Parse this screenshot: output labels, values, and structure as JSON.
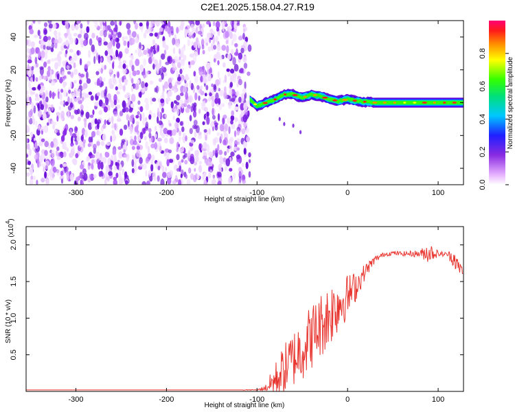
{
  "title": "C2E1.2025.158.04.27.R19",
  "colors": {
    "axis": "#000000",
    "snr_line": "#e8342e",
    "speckle": "#7a1fe0"
  },
  "chart_data": [
    {
      "type": "heatmap",
      "xlabel": "Height of straight line (km)",
      "ylabel": "Frequency (Hz)",
      "xlim": [
        -355,
        128
      ],
      "ylim": [
        -50,
        50
      ],
      "x_ticks": [
        "-300",
        "-200",
        "-100",
        "0",
        "100"
      ],
      "y_ticks": [
        "-40",
        "-20",
        "0",
        "20",
        "40"
      ],
      "colorbar": {
        "label": "Normalized spectral amplitude",
        "range": [
          0,
          1
        ],
        "ticks": [
          "0.0",
          "0.2",
          "0.4",
          "0.6",
          "0.8"
        ],
        "colormap": "rainbow-magenta"
      },
      "noise_region_x": [
        -355,
        -108
      ],
      "ridge": {
        "x": [
          -108,
          -100,
          -90,
          -80,
          -70,
          -60,
          -50,
          -40,
          -30,
          -20,
          -10,
          0,
          10,
          30,
          60,
          90,
          128
        ],
        "freq": [
          2,
          -2,
          0,
          2,
          5,
          5,
          3,
          5,
          4,
          2,
          1,
          2,
          1,
          0,
          0,
          0,
          0
        ],
        "width_hz": 6
      }
    },
    {
      "type": "line",
      "xlabel": "Height of straight line (km)",
      "ylabel": "SNR (10 * v/v)",
      "y_multiplier_label": "(x10",
      "y_multiplier_exp": "4",
      "xlim": [
        -355,
        128
      ],
      "ylim": [
        0,
        2.25
      ],
      "x_ticks": [
        "-300",
        "-200",
        "-100",
        "0",
        "100"
      ],
      "y_ticks": [
        "0.5",
        "1.0",
        "1.5",
        "2.0"
      ],
      "series": [
        {
          "x": [
            -355,
            -300,
            -200,
            -100,
            -90,
            -80,
            -70,
            -60,
            -50,
            -40,
            -30,
            -20,
            -10,
            0,
            10,
            20,
            30,
            40,
            50,
            60,
            70,
            80,
            90,
            100,
            110,
            118,
            122,
            128
          ],
          "values": [
            0.02,
            0.02,
            0.02,
            0.02,
            0.05,
            0.15,
            0.3,
            0.45,
            0.6,
            0.75,
            0.9,
            1.05,
            1.2,
            1.3,
            1.45,
            1.65,
            1.8,
            1.87,
            1.89,
            1.88,
            1.88,
            1.88,
            1.9,
            1.88,
            1.87,
            1.82,
            1.7,
            1.65
          ],
          "noise": [
            0.0,
            0.0,
            0.0,
            0.0,
            0.05,
            0.25,
            0.35,
            0.4,
            0.45,
            0.45,
            0.45,
            0.45,
            0.4,
            0.3,
            0.2,
            0.1,
            0.05,
            0.03,
            0.03,
            0.03,
            0.04,
            0.05,
            0.15,
            0.04,
            0.03,
            0.15,
            0.1,
            0.08
          ]
        }
      ]
    }
  ]
}
